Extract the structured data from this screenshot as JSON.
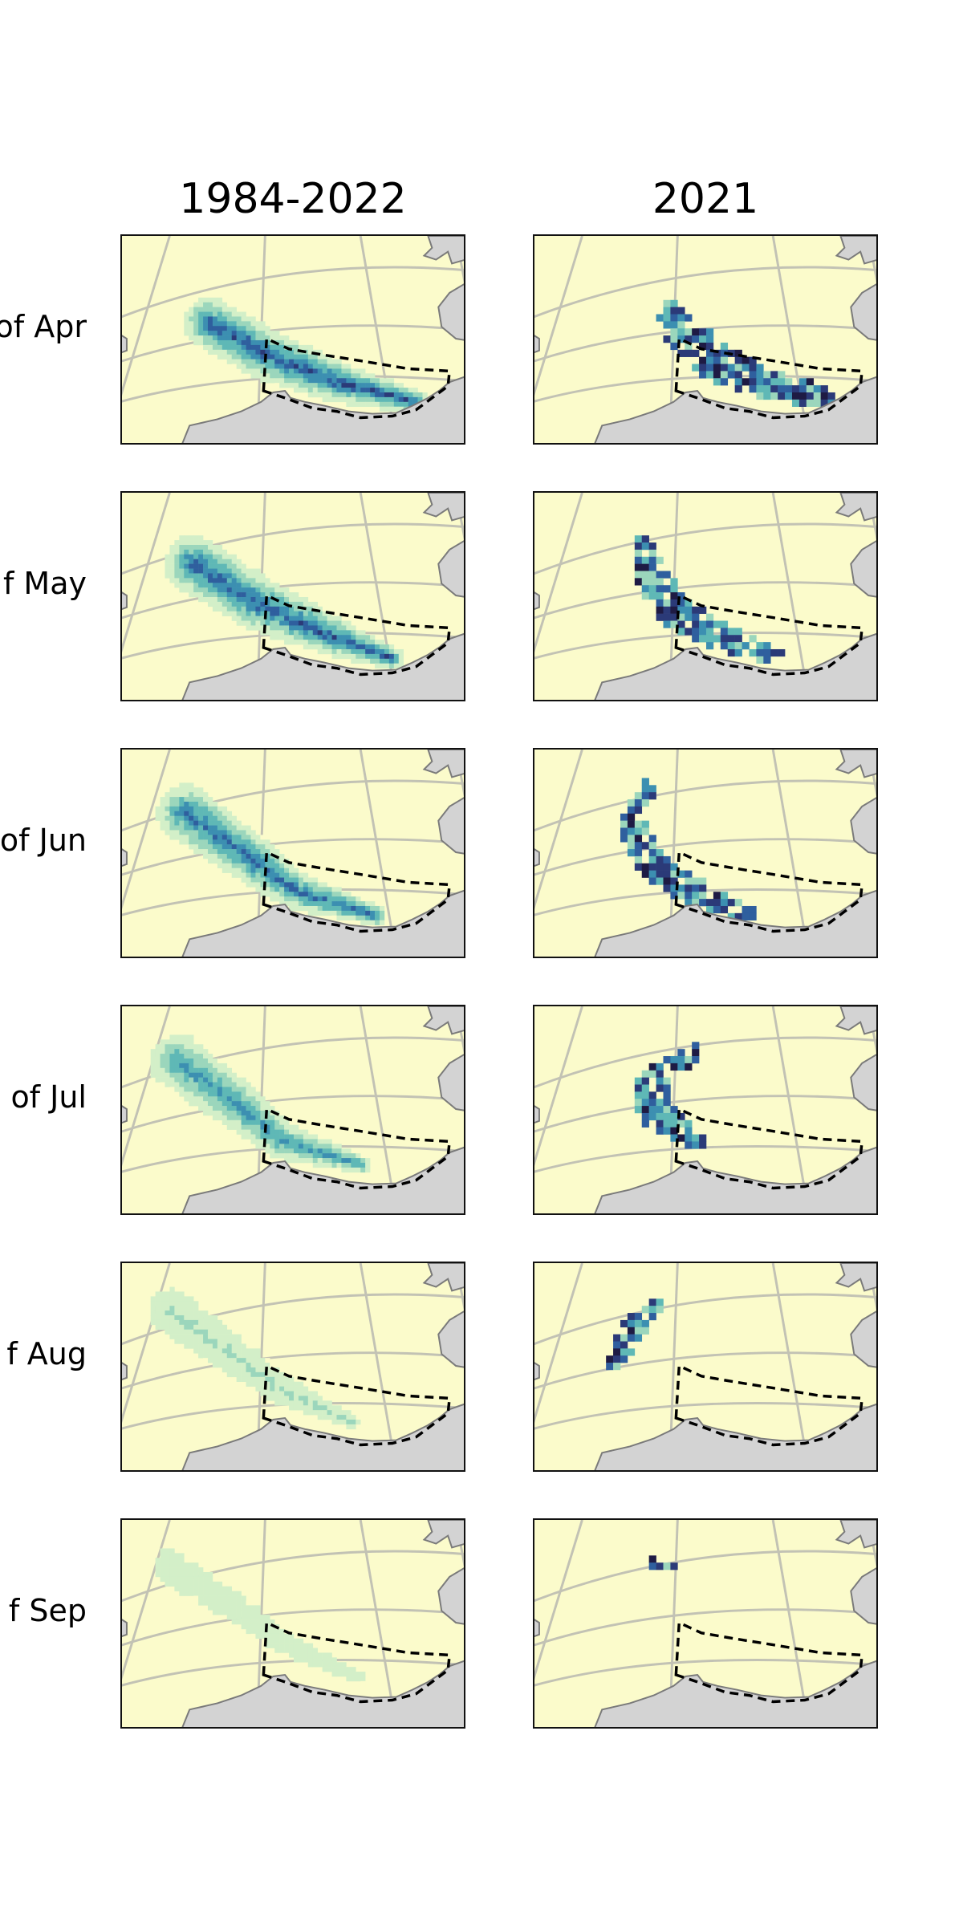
{
  "columns": [
    {
      "title": "1984-2022",
      "kind": "climatology"
    },
    {
      "title": "2021",
      "kind": "single-year"
    }
  ],
  "rows": [
    {
      "label": "of Apr",
      "month": "Apr"
    },
    {
      "label": "f May",
      "month": "May"
    },
    {
      "label": "of Jun",
      "month": "Jun"
    },
    {
      "label": "of Jul",
      "month": "Jul"
    },
    {
      "label": "f Aug",
      "month": "Aug"
    },
    {
      "label": "f Sep",
      "month": "Sep"
    }
  ],
  "colors": {
    "ocean": "#fbfbcb",
    "land": "#d3d3d3",
    "coast": "#7a7a7a",
    "graticule": "#c2c2b4",
    "boundary": "#000000",
    "colormap": [
      "#fbfbcb",
      "#d3efc8",
      "#9bd6bc",
      "#5fb8b6",
      "#3c8fb1",
      "#2f5f9e",
      "#2b3a78",
      "#1e1b44"
    ]
  },
  "legend": "none",
  "map_features": [
    "graticule-circles",
    "meridians",
    "land-grey",
    "dashed-region-boundary"
  ]
}
